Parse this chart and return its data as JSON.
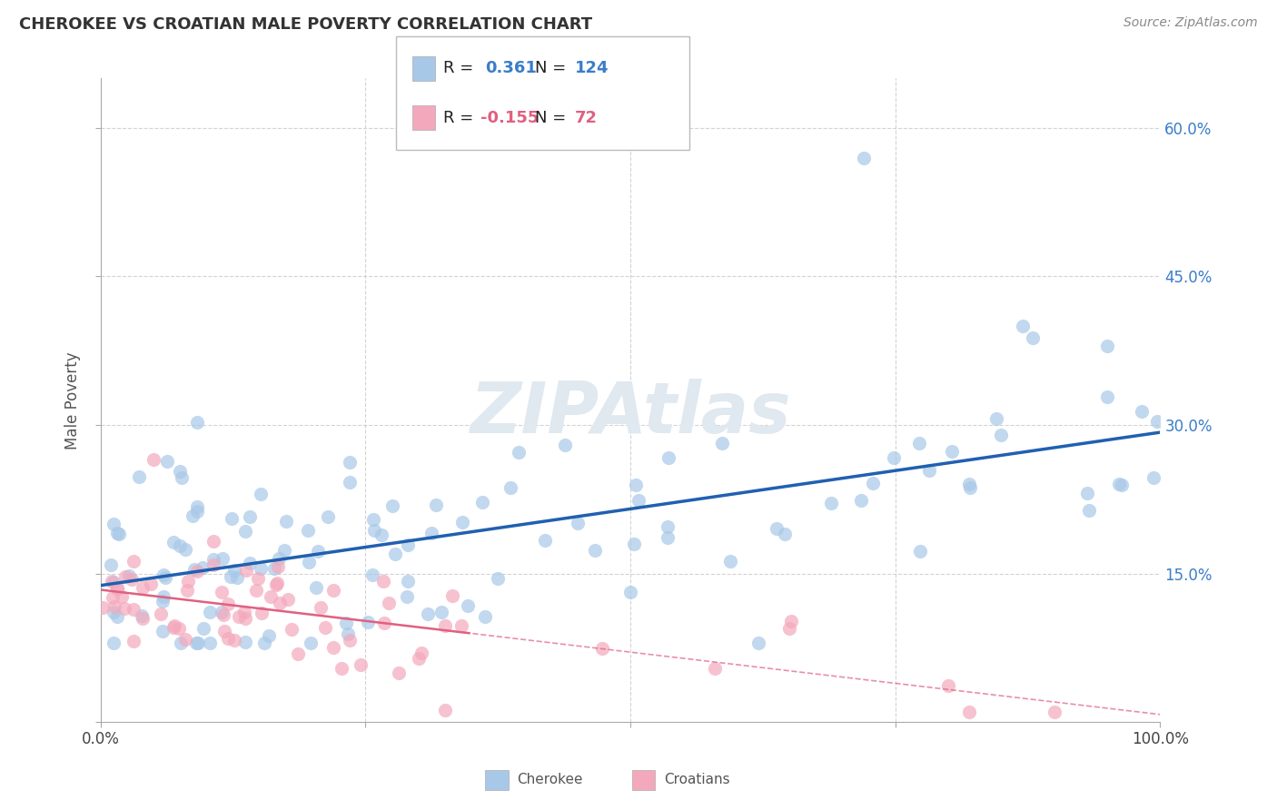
{
  "title": "CHEROKEE VS CROATIAN MALE POVERTY CORRELATION CHART",
  "source": "Source: ZipAtlas.com",
  "ylabel": "Male Poverty",
  "xlim": [
    0,
    1
  ],
  "ylim": [
    0,
    0.65
  ],
  "cherokee_color": "#a8c8e8",
  "croatian_color": "#f4a8bc",
  "cherokee_line_color": "#2060b0",
  "croatian_line_color": "#e06080",
  "cherokee_R": 0.361,
  "cherokee_N": 124,
  "croatian_R": -0.155,
  "croatian_N": 72,
  "tick_color": "#3a7dc9",
  "background_color": "#ffffff",
  "grid_color": "#c8c8c8",
  "title_color": "#333333",
  "watermark_text": "ZIPAtlas",
  "legend_border_color": "#cccccc"
}
